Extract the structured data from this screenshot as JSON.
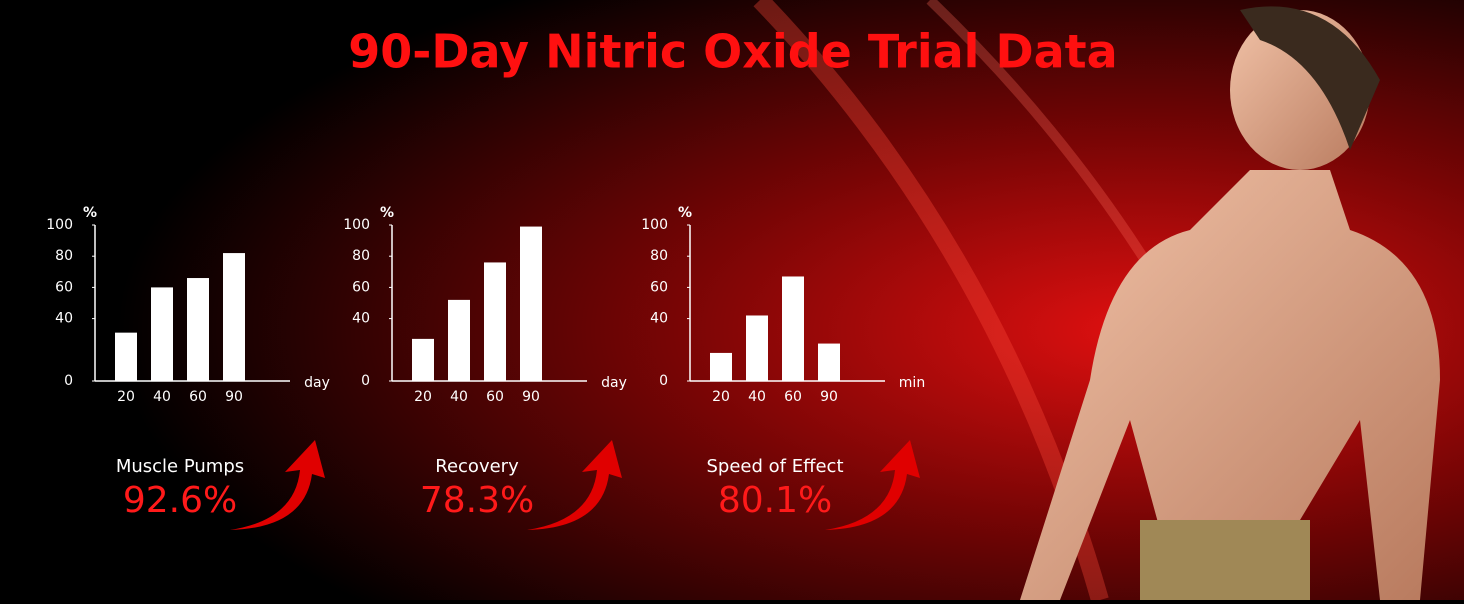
{
  "title": "90-Day Nitric Oxide Trial Data",
  "chart_data": [
    {
      "type": "bar",
      "y_label": "%",
      "x_label": "day",
      "categories": [
        "20",
        "40",
        "60",
        "90"
      ],
      "values": [
        31,
        60,
        66,
        82
      ],
      "color": "#ffffff",
      "ylim": [
        0,
        100
      ],
      "yticks": [
        0,
        40,
        60,
        80,
        100
      ],
      "caption": "Muscle Pumps",
      "stat": "92.6%"
    },
    {
      "type": "bar",
      "y_label": "%",
      "x_label": "day",
      "categories": [
        "20",
        "40",
        "60",
        "90"
      ],
      "values": [
        27,
        52,
        76,
        99
      ],
      "color": "#ffffff",
      "ylim": [
        0,
        100
      ],
      "yticks": [
        0,
        40,
        60,
        80,
        100
      ],
      "caption": "Recovery",
      "stat": "78.3%"
    },
    {
      "type": "bar",
      "y_label": "%",
      "x_label": "min",
      "categories": [
        "20",
        "40",
        "60",
        "90"
      ],
      "values": [
        18,
        42,
        67,
        24
      ],
      "color": "#ffffff",
      "ylim": [
        0,
        100
      ],
      "yticks": [
        0,
        40,
        60,
        80,
        100
      ],
      "caption": "Speed of Effect",
      "stat": "80.1%"
    }
  ]
}
